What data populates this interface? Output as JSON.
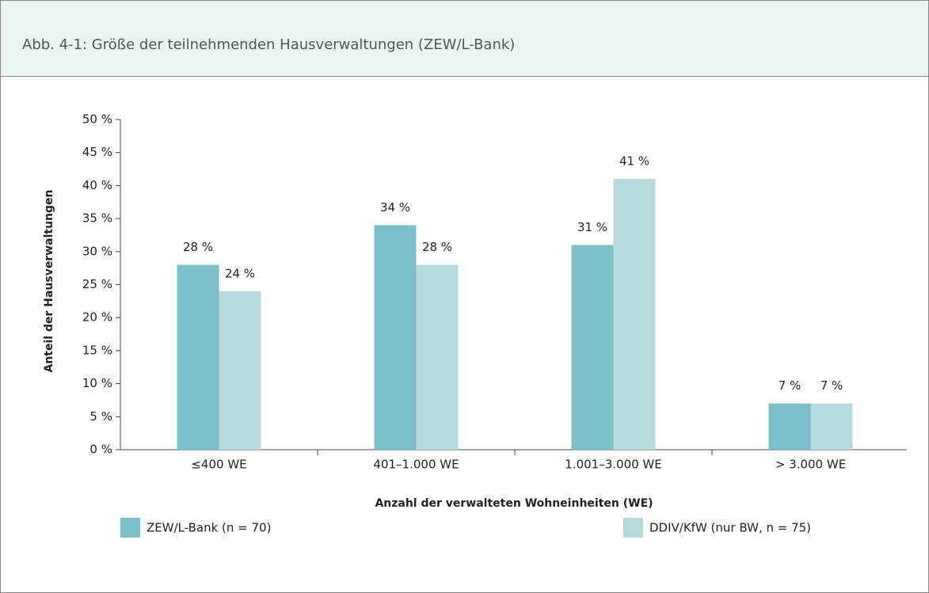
{
  "chart_data": {
    "type": "bar",
    "title": "Abb. 4-1: Größe der teilnehmenden Hausverwaltungen (ZEW/L-Bank)",
    "y_label": "Anteil der Hausverwaltungen",
    "x_label": "Anzahl der verwalteten Wohneinheiten (WE)",
    "categories": [
      "≤400 WE",
      "401–1.000 WE",
      "1.001–3.000 WE",
      "> 3.000 WE"
    ],
    "series": [
      {
        "name": "ZEW/L-Bank (n = 70)",
        "color": "#7bbfc9",
        "values": [
          28,
          34,
          31,
          7
        ],
        "value_labels": [
          "28 %",
          "34 %",
          "31 %",
          "7 %"
        ]
      },
      {
        "name": "DDIV/KfW (nur BW, n = 75)",
        "color": "#b5dadc",
        "values": [
          24,
          28,
          41,
          7
        ],
        "value_labels": [
          "24 %",
          "28 %",
          "41 %",
          "7 %"
        ]
      }
    ],
    "ylim": [
      0,
      50
    ],
    "yticks": [
      {
        "value": 0,
        "label": "0 %"
      },
      {
        "value": 5,
        "label": "5 %"
      },
      {
        "value": 10,
        "label": "10 %"
      },
      {
        "value": 15,
        "label": "15 %"
      },
      {
        "value": 20,
        "label": "20 %"
      },
      {
        "value": 25,
        "label": "25 %"
      },
      {
        "value": 30,
        "label": "30 %"
      },
      {
        "value": 35,
        "label": "35 %"
      },
      {
        "value": 40,
        "label": "40 %"
      },
      {
        "value": 45,
        "label": "45 %"
      },
      {
        "value": 50,
        "label": "50 %"
      }
    ],
    "grid": false
  }
}
